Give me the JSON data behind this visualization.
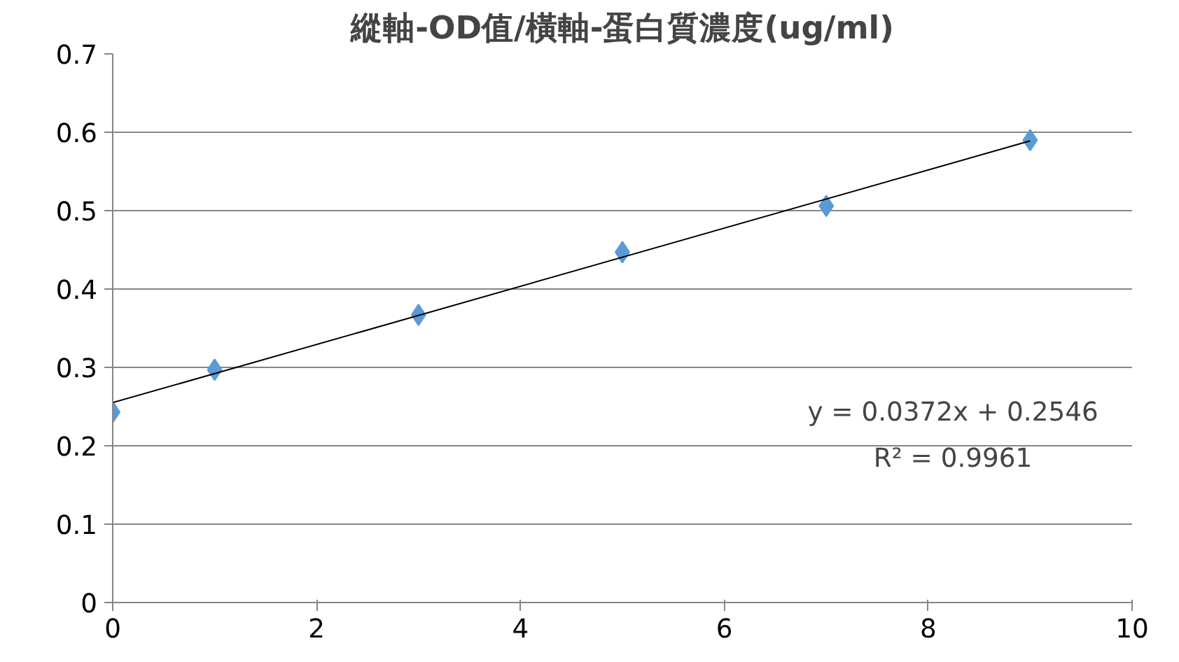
{
  "chart_data": {
    "type": "scatter",
    "title": "縱軸-OD值/橫軸-蛋白質濃度(ug/ml)",
    "x": [
      0,
      1,
      3,
      5,
      7,
      9
    ],
    "series": [
      {
        "color": "#5b9bd5",
        "marker": "diamond",
        "values": [
          0.243,
          0.297,
          0.367,
          0.447,
          0.506,
          0.59
        ]
      },
      {
        "type": "line",
        "color": "#000000",
        "marker": "none",
        "x": [
          0,
          9
        ],
        "values": [
          0.255,
          0.589
        ]
      }
    ],
    "xlim": [
      0,
      10
    ],
    "xticks": [
      0,
      2,
      4,
      6,
      8,
      10
    ],
    "ylim": [
      0,
      0.7
    ],
    "yticks": [
      0,
      0.1,
      0.2,
      0.3,
      0.4,
      0.5,
      0.6,
      0.7
    ],
    "grid": "y",
    "annotations": [
      "y = 0.0372x + 0.2546",
      "R² = 0.9961"
    ]
  }
}
